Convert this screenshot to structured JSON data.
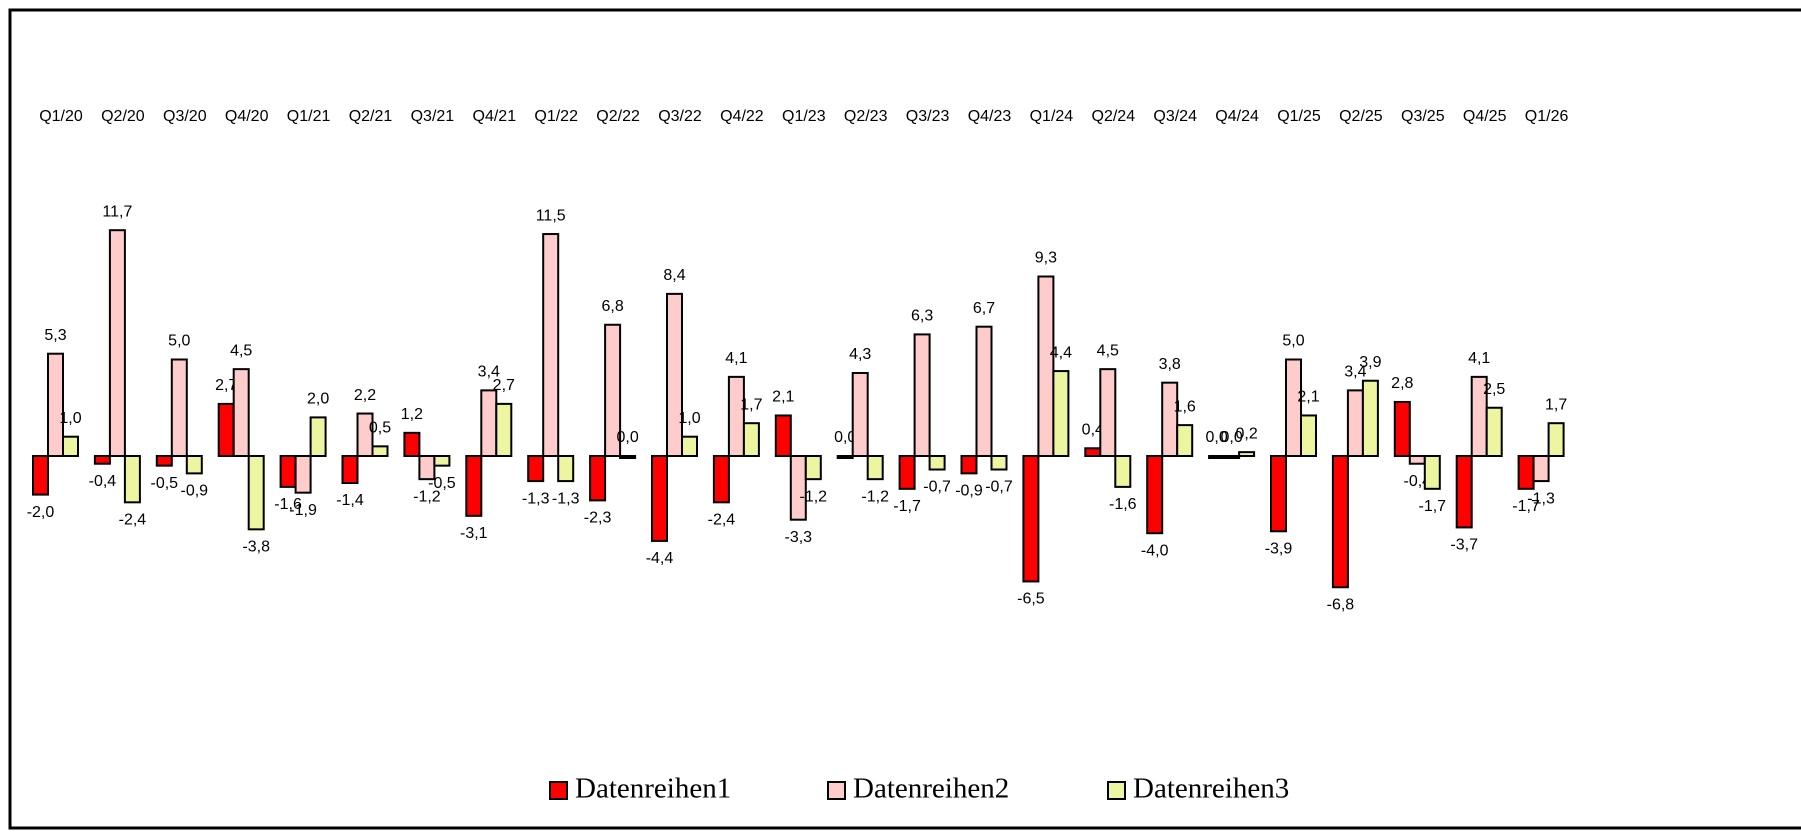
{
  "chart_data": {
    "type": "bar",
    "categories": [
      "Q1/20",
      "Q2/20",
      "Q3/20",
      "Q4/20",
      "Q1/21",
      "Q2/21",
      "Q3/21",
      "Q4/21",
      "Q1/22",
      "Q2/22",
      "Q3/22",
      "Q4/22",
      "Q1/23",
      "Q2/23",
      "Q3/23",
      "Q4/23",
      "Q1/24",
      "Q2/24",
      "Q3/24",
      "Q4/24",
      "Q1/25",
      "Q2/25",
      "Q3/25",
      "Q4/25",
      "Q1/26"
    ],
    "series": [
      {
        "name": "Datenreihen1",
        "color": "#ff0000",
        "values": [
          -2.0,
          -0.4,
          -0.5,
          2.7,
          -1.6,
          -1.4,
          1.2,
          -3.1,
          -1.3,
          -2.3,
          -4.4,
          -2.4,
          2.1,
          0.0,
          -1.7,
          -0.9,
          -6.5,
          0.4,
          -4.0,
          0.0,
          -3.9,
          -6.8,
          2.8,
          -3.7,
          -1.7
        ],
        "value_labels": [
          "-2,0",
          "-0,4",
          "-0,5",
          "2,7",
          "-1,6",
          "-1,4",
          "1,2",
          "-3,1",
          "-1,3",
          "-2,3",
          "-4,4",
          "-2,4",
          "2,1",
          "0,0",
          "-1,7",
          "-0,9",
          "-6,5",
          "0,4",
          "-4,0",
          "0,0",
          "-3,9",
          "-6,8",
          "2,8",
          "-3,7",
          "-1,7"
        ]
      },
      {
        "name": "Datenreihen2",
        "color": "#ffcccc",
        "values": [
          5.3,
          11.7,
          5.0,
          4.5,
          -1.9,
          2.2,
          -1.2,
          3.4,
          11.5,
          6.8,
          8.4,
          4.1,
          -3.3,
          4.3,
          6.3,
          6.7,
          9.3,
          4.5,
          3.8,
          0.0,
          5.0,
          3.4,
          -0.4,
          4.1,
          -1.3
        ],
        "value_labels": [
          "5,3",
          "11,7",
          "5,0",
          "4,5",
          "-1,9",
          "2,2",
          "-1,2",
          "3,4",
          "11,5",
          "6,8",
          "8,4",
          "4,1",
          "-3,3",
          "4,3",
          "6,3",
          "6,7",
          "9,3",
          "4,5",
          "3,8",
          "0,0",
          "5,0",
          "3,4",
          "-0,4",
          "4,1",
          "-1,3"
        ]
      },
      {
        "name": "Datenreihen3",
        "color": "#eef5a0",
        "values": [
          1.0,
          -2.4,
          -0.9,
          -3.8,
          2.0,
          0.5,
          -0.5,
          2.7,
          -1.3,
          0.0,
          1.0,
          1.7,
          -1.2,
          -1.2,
          -0.7,
          -0.7,
          4.4,
          -1.6,
          1.6,
          0.2,
          2.1,
          3.9,
          -1.7,
          2.5,
          1.7
        ],
        "value_labels": [
          "1,0",
          "-2,4",
          "-0,9",
          "-3,8",
          "2,0",
          "0,5",
          "-0,5",
          "2,7",
          "-1,3",
          "0,0",
          "1,0",
          "1,7",
          "-1,2",
          "-1,2",
          "-0,7",
          "-0,7",
          "4,4",
          "-1,6",
          "1,6",
          "0,2",
          "2,1",
          "3,9",
          "-1,7",
          "2,5",
          "1,7"
        ]
      }
    ]
  }
}
